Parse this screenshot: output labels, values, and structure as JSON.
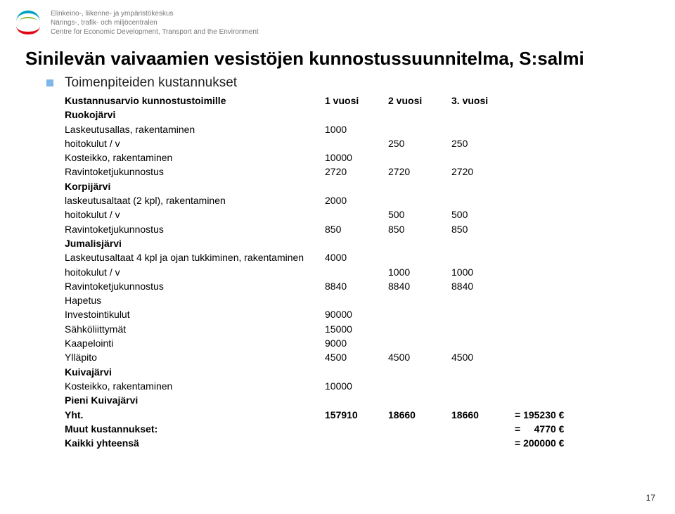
{
  "org": {
    "line1": "Elinkeino-, liikenne- ja ympäristökeskus",
    "line2": "Närings-, trafik- och miljöcentralen",
    "line3": "Centre for Economic Development, Transport and the Environment"
  },
  "title": "Sinilevän vaivaamien vesistöjen kunnostussuunnitelma, S:salmi",
  "subtitle": "Toimenpiteiden kustannukset",
  "header_row": {
    "label": "Kustannusarvio kunnostustoimille",
    "a": "1 vuosi",
    "b": "2 vuosi",
    "c": "3. vuosi"
  },
  "rows": [
    {
      "label": "Ruokojärvi",
      "a": "",
      "b": "",
      "c": "",
      "bold": true
    },
    {
      "label": "Laskeutusallas, rakentaminen",
      "a": "1000",
      "b": "",
      "c": ""
    },
    {
      "label": "hoitokulut / v",
      "a": "",
      "b": "250",
      "c": "250"
    },
    {
      "label": "Kosteikko, rakentaminen",
      "a": "10000",
      "b": "",
      "c": ""
    },
    {
      "label": "Ravintoketjukunnostus",
      "a": "2720",
      "b": "2720",
      "c": "2720"
    },
    {
      "label": "Korpijärvi",
      "a": "",
      "b": "",
      "c": "",
      "bold": true
    },
    {
      "label": "laskeutusaltaat (2 kpl), rakentaminen",
      "a": "2000",
      "b": "",
      "c": ""
    },
    {
      "label": "hoitokulut / v",
      "a": "",
      "b": "500",
      "c": "500"
    },
    {
      "label": "Ravintoketjukunnostus",
      "a": "850",
      "b": "850",
      "c": "850"
    },
    {
      "label": "Jumalisjärvi",
      "a": "",
      "b": "",
      "c": "",
      "bold": true
    },
    {
      "label": "Laskeutusaltaat 4 kpl ja ojan tukkiminen, rakentaminen",
      "a": "4000",
      "b": "",
      "c": ""
    },
    {
      "label": "hoitokulut / v",
      "a": "",
      "b": "1000",
      "c": "1000"
    },
    {
      "label": "Ravintoketjukunnostus",
      "a": "8840",
      "b": "8840",
      "c": "8840"
    },
    {
      "label": "Hapetus",
      "a": "",
      "b": "",
      "c": ""
    },
    {
      "label": "Investointikulut",
      "a": "90000",
      "b": "",
      "c": ""
    },
    {
      "label": "Sähköliittymät",
      "a": "15000",
      "b": "",
      "c": ""
    },
    {
      "label": "Kaapelointi",
      "a": "9000",
      "b": "",
      "c": ""
    },
    {
      "label": "Ylläpito",
      "a": "4500",
      "b": "4500",
      "c": "4500"
    },
    {
      "label": "Kuivajärvi",
      "a": "",
      "b": "",
      "c": "",
      "bold": true
    },
    {
      "label": "Kosteikko, rakentaminen",
      "a": "10000",
      "b": "",
      "c": ""
    },
    {
      "label": "Pieni Kuivajärvi",
      "a": "",
      "b": "",
      "c": "",
      "bold": true
    }
  ],
  "total": {
    "label": "Yht.",
    "a": "157910",
    "b": "18660",
    "c": "18660",
    "eq": "= 195230 €"
  },
  "other": {
    "label": "Muut kustannukset:",
    "eq": "=     4770 €"
  },
  "grand": {
    "label": "Kaikki yhteensä",
    "eq": "= 200000 €"
  },
  "page_number": "17",
  "colors": {
    "bullet": "#7db8e8",
    "org_text": "#777777",
    "logo_top": "#00a2c4",
    "logo_mid": "#78b928",
    "logo_bot": "#e30613"
  }
}
